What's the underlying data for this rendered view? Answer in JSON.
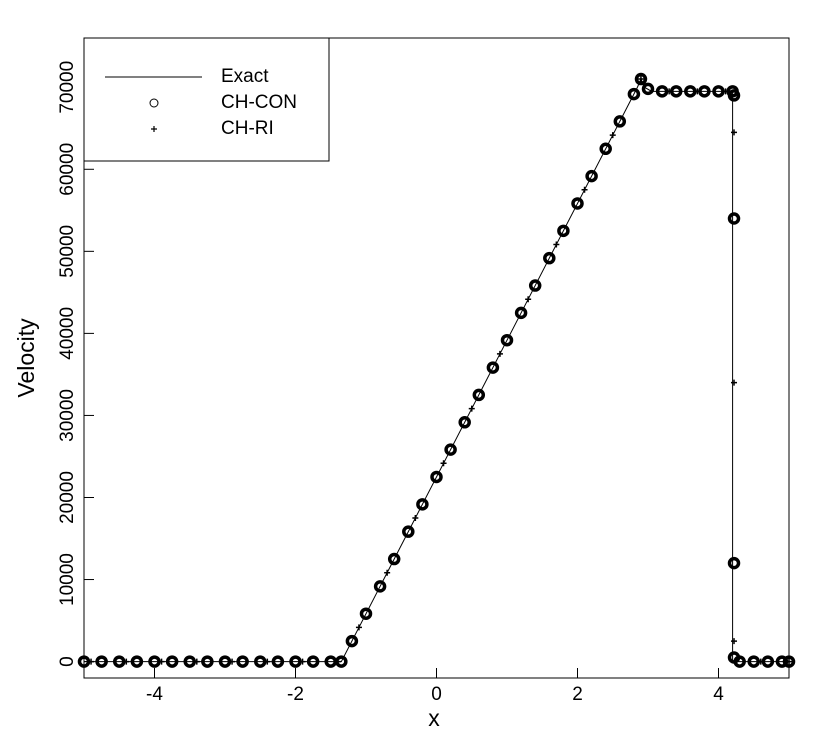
{
  "chart_data": {
    "type": "line",
    "x_label": "x",
    "y_label": "Velocity",
    "xlim": [
      -5,
      5
    ],
    "ylim": [
      -2000,
      76000
    ],
    "xticks": [
      -4,
      -2,
      0,
      2,
      4
    ],
    "yticks": [
      0,
      10000,
      20000,
      30000,
      40000,
      50000,
      60000,
      70000
    ],
    "legend": "upper-left",
    "series": [
      {
        "name": "Exact",
        "color": "#000000",
        "marker": "line",
        "x": [
          -5,
          -1.35,
          2.85,
          2.9,
          2.95,
          3.05,
          4.2,
          4.2,
          5
        ],
        "values": [
          0,
          0,
          70000,
          71000,
          70000,
          69500,
          69500,
          0,
          0
        ]
      },
      {
        "name": "CH-CON",
        "color": "#000000",
        "marker": "circle",
        "x": [
          -5,
          -4.75,
          -4.5,
          -4.25,
          -4,
          -3.75,
          -3.5,
          -3.25,
          -3,
          -2.75,
          -2.5,
          -2.25,
          -2,
          -1.75,
          -1.5,
          -1.35,
          -1.2,
          -1.0,
          -0.8,
          -0.6,
          -0.4,
          -0.2,
          0,
          0.2,
          0.4,
          0.6,
          0.8,
          1.0,
          1.2,
          1.4,
          1.6,
          1.8,
          2.0,
          2.2,
          2.4,
          2.6,
          2.8,
          2.9,
          3.0,
          3.2,
          3.4,
          3.6,
          3.8,
          4.0,
          4.2,
          4.22,
          4.22,
          4.22,
          4.22,
          4.3,
          4.5,
          4.7,
          4.9,
          5
        ],
        "values": [
          0,
          0,
          0,
          0,
          0,
          0,
          0,
          0,
          0,
          0,
          0,
          0,
          0,
          0,
          0,
          0,
          2500,
          5833,
          9167,
          12500,
          15833,
          19167,
          22500,
          25833,
          29167,
          32500,
          35833,
          39167,
          42500,
          45833,
          49167,
          52500,
          55833,
          59167,
          62500,
          65833,
          69167,
          71000,
          69800,
          69500,
          69500,
          69500,
          69500,
          69500,
          69500,
          69000,
          54000,
          12000,
          500,
          0,
          0,
          0,
          0,
          0
        ]
      },
      {
        "name": "CH-RI",
        "color": "#000000",
        "marker": "plus",
        "x": [
          -4.9,
          -4.4,
          -3.9,
          -3.4,
          -2.9,
          -2.4,
          -1.9,
          -1.4,
          -1.1,
          -0.7,
          -0.3,
          0.1,
          0.5,
          0.9,
          1.3,
          1.7,
          2.1,
          2.5,
          2.9,
          3.3,
          3.7,
          4.1,
          4.22,
          4.22,
          4.22,
          4.6,
          5.0
        ],
        "values": [
          0,
          0,
          0,
          0,
          0,
          0,
          0,
          0,
          4167,
          10833,
          17500,
          24167,
          30833,
          37500,
          44167,
          50833,
          57500,
          64167,
          71000,
          69500,
          69500,
          69500,
          64500,
          34000,
          2500,
          0,
          0
        ]
      }
    ]
  }
}
